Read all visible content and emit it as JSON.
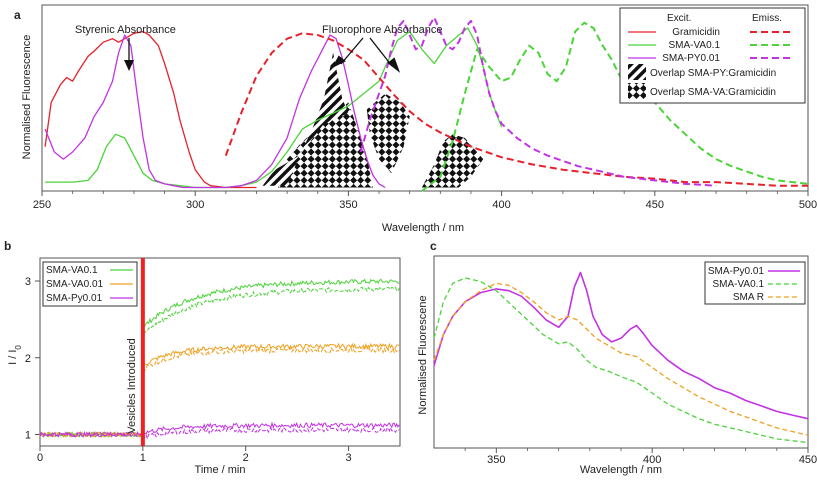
{
  "chart_data": [
    {
      "id": "a",
      "type": "line",
      "panel_label": "a",
      "xlabel": "Wavelength / nm",
      "ylabel": "Normalised Fluorescence",
      "xlim": [
        250,
        500
      ],
      "ylim": [
        0,
        1.05
      ],
      "xticks": [
        "250",
        "300",
        "350",
        "400",
        "450",
        "500"
      ],
      "xtick_values": [
        250,
        300,
        350,
        400,
        450,
        500
      ],
      "legend": {
        "excit_header": "Excit.",
        "emiss_header": "Emiss.",
        "entries": [
          "Gramicidin",
          "SMA-VA0.1",
          "SMA-PY0.01"
        ],
        "overlap_py_label": "Overlap SMA-PY:Gramicidin",
        "overlap_va_label": "Overlap SMA-VA:Gramicidin"
      },
      "annotations": {
        "styrenic": "Styrenic Absorbance",
        "fluorophore": "Fluorophore Absorbance"
      },
      "colors": {
        "gramicidin": "#e8202a",
        "va": "#4cd43a",
        "py": "#c233e3"
      },
      "series": [
        {
          "name": "Gramicidin",
          "kind": "excitation",
          "color": "#e8202a",
          "x": [
            251,
            253,
            256,
            258,
            260,
            262,
            265,
            267,
            270,
            273,
            275,
            278,
            280,
            283,
            285,
            288,
            290,
            293,
            295,
            298,
            300,
            303,
            305,
            310,
            315,
            320
          ],
          "y": [
            0.25,
            0.5,
            0.6,
            0.64,
            0.62,
            0.68,
            0.76,
            0.79,
            0.84,
            0.86,
            0.84,
            0.87,
            0.89,
            0.9,
            0.88,
            0.82,
            0.72,
            0.55,
            0.4,
            0.22,
            0.12,
            0.05,
            0.03,
            0.02,
            0.02,
            0.02
          ]
        },
        {
          "name": "SMA-VA0.1",
          "kind": "excitation",
          "color": "#4cd43a",
          "x": [
            251,
            255,
            260,
            265,
            268,
            271,
            274,
            277,
            280,
            283,
            286,
            290,
            295,
            300,
            305,
            310,
            315,
            320,
            325,
            330,
            335,
            340,
            345,
            350,
            355,
            360,
            362,
            366,
            370,
            374,
            378,
            382,
            386,
            389,
            392,
            394,
            396,
            398,
            400
          ],
          "y": [
            0.05,
            0.05,
            0.05,
            0.06,
            0.12,
            0.25,
            0.32,
            0.3,
            0.2,
            0.1,
            0.06,
            0.04,
            0.03,
            0.02,
            0.02,
            0.02,
            0.03,
            0.05,
            0.11,
            0.22,
            0.35,
            0.4,
            0.44,
            0.48,
            0.55,
            0.62,
            0.7,
            0.85,
            0.9,
            0.8,
            0.72,
            0.82,
            0.88,
            0.92,
            0.82,
            0.7,
            0.55,
            0.45,
            0.36
          ]
        },
        {
          "name": "SMA-PY0.01",
          "kind": "excitation",
          "color": "#c233e3",
          "x": [
            251,
            254,
            257,
            260,
            264,
            267,
            270,
            273,
            275,
            277,
            279,
            281,
            283,
            285,
            287,
            290,
            293,
            296,
            300,
            305,
            310,
            315,
            320,
            325,
            330,
            334,
            338,
            341,
            344,
            346,
            348,
            350,
            352,
            354,
            356,
            358,
            360,
            362
          ],
          "y": [
            0.35,
            0.22,
            0.18,
            0.22,
            0.3,
            0.42,
            0.5,
            0.62,
            0.78,
            0.88,
            0.82,
            0.55,
            0.3,
            0.12,
            0.06,
            0.04,
            0.03,
            0.02,
            0.02,
            0.02,
            0.02,
            0.03,
            0.06,
            0.15,
            0.3,
            0.52,
            0.68,
            0.78,
            0.88,
            0.86,
            0.75,
            0.6,
            0.44,
            0.3,
            0.18,
            0.09,
            0.04,
            0.02
          ]
        },
        {
          "name": "Gramicidin",
          "kind": "emission",
          "color": "#e8202a",
          "x": [
            310,
            315,
            320,
            325,
            330,
            335,
            340,
            345,
            350,
            355,
            360,
            365,
            370,
            375,
            380,
            385,
            390,
            395,
            400,
            410,
            420,
            430,
            440,
            450,
            460,
            470,
            480,
            490,
            500
          ],
          "y": [
            0.2,
            0.44,
            0.65,
            0.78,
            0.86,
            0.89,
            0.88,
            0.85,
            0.8,
            0.74,
            0.64,
            0.54,
            0.45,
            0.38,
            0.33,
            0.29,
            0.25,
            0.22,
            0.19,
            0.15,
            0.12,
            0.1,
            0.08,
            0.07,
            0.05,
            0.05,
            0.04,
            0.03,
            0.03
          ]
        },
        {
          "name": "SMA-VA0.1",
          "kind": "emission",
          "color": "#4cd43a",
          "x": [
            374,
            380,
            384,
            388,
            392,
            396,
            400,
            403,
            406,
            409,
            412,
            415,
            418,
            421,
            424,
            427,
            430,
            433,
            436,
            440,
            445,
            450,
            455,
            460,
            465,
            470,
            475,
            480,
            485,
            490,
            495,
            500
          ],
          "y": [
            0.0,
            0.08,
            0.28,
            0.55,
            0.8,
            0.7,
            0.62,
            0.64,
            0.74,
            0.82,
            0.78,
            0.66,
            0.62,
            0.7,
            0.9,
            0.95,
            0.92,
            0.82,
            0.74,
            0.6,
            0.55,
            0.5,
            0.4,
            0.32,
            0.24,
            0.18,
            0.14,
            0.11,
            0.08,
            0.06,
            0.05,
            0.04
          ]
        },
        {
          "name": "SMA-PY0.01",
          "kind": "emission",
          "color": "#c233e3",
          "x": [
            354,
            357,
            360,
            362,
            364,
            366,
            368,
            370,
            372,
            374,
            376,
            378,
            380,
            382,
            384,
            386,
            388,
            390,
            392,
            394,
            396,
            398,
            400,
            405,
            410,
            415,
            420,
            425,
            430,
            435,
            440,
            450,
            460,
            470
          ],
          "y": [
            0.22,
            0.4,
            0.55,
            0.65,
            0.8,
            0.92,
            0.96,
            0.88,
            0.8,
            0.82,
            0.92,
            0.98,
            0.9,
            0.82,
            0.8,
            0.84,
            0.92,
            0.96,
            0.88,
            0.7,
            0.55,
            0.45,
            0.38,
            0.3,
            0.24,
            0.2,
            0.17,
            0.14,
            0.12,
            0.1,
            0.08,
            0.06,
            0.04,
            0.03
          ]
        }
      ],
      "overlap_regions": {
        "py_gramicidin": [
          [
            330,
            0.03
          ],
          [
            334,
            0.2
          ],
          [
            338,
            0.34
          ],
          [
            342,
            0.52
          ],
          [
            345,
            0.78
          ],
          [
            348,
            0.52
          ],
          [
            350,
            0.44
          ],
          [
            342,
            0.38
          ],
          [
            334,
            0.2
          ],
          [
            326,
            0.12
          ],
          [
            322,
            0.03
          ]
        ],
        "va_gramicidin": [
          [
            [
              327,
              0.02
            ],
            [
              330,
              0.18
            ],
            [
              334,
              0.26
            ],
            [
              340,
              0.36
            ],
            [
              345,
              0.42
            ],
            [
              350,
              0.5
            ],
            [
              352,
              0.4
            ],
            [
              356,
              0.2
            ],
            [
              358,
              0.02
            ]
          ],
          [
            [
              356,
              0.46
            ],
            [
              362,
              0.55
            ],
            [
              367,
              0.5
            ],
            [
              370,
              0.42
            ],
            [
              368,
              0.25
            ],
            [
              364,
              0.1
            ],
            [
              360,
              0.18
            ],
            [
              357,
              0.32
            ]
          ],
          [
            [
              374,
              0.02
            ],
            [
              378,
              0.15
            ],
            [
              381,
              0.28
            ],
            [
              384,
              0.32
            ],
            [
              388,
              0.3
            ],
            [
              391,
              0.24
            ],
            [
              394,
              0.18
            ],
            [
              390,
              0.08
            ],
            [
              386,
              0.02
            ]
          ]
        ]
      }
    },
    {
      "id": "b",
      "type": "line",
      "panel_label": "b",
      "xlabel": "Time / min",
      "ylabel_main": "I / I",
      "ylabel_sub": "0",
      "xlim": [
        0,
        3.5
      ],
      "ylim": [
        0.85,
        3.3
      ],
      "xticks": [
        "0",
        "1",
        "2",
        "3"
      ],
      "xtick_values": [
        0,
        1,
        2,
        3
      ],
      "yticks": [
        "1",
        "2",
        "3"
      ],
      "ytick_values": [
        1,
        2,
        3
      ],
      "event_label": "Vesicles Introduced",
      "event_x": 1.0,
      "event_color": "#ee2222",
      "legend": [
        "SMA-VA0.1",
        "SMA-VA0.01",
        "SMA-Py0.01"
      ],
      "series": [
        {
          "name": "SMA-VA0.1",
          "color": "#4cd43a",
          "start": 2.4,
          "rise": 0.5,
          "plateau_solid": 3.0,
          "plateau_dashed": 2.9
        },
        {
          "name": "SMA-VA0.01",
          "color": "#f0a020",
          "start": 1.9,
          "rise": 0.3,
          "plateau_solid": 2.15,
          "plateau_dashed": 2.1
        },
        {
          "name": "SMA-Py0.01",
          "color": "#c233e3",
          "start": 1.02,
          "rise": 0.3,
          "plateau_solid": 1.12,
          "plateau_dashed": 1.06
        }
      ]
    },
    {
      "id": "c",
      "type": "line",
      "panel_label": "c",
      "xlabel": "Wavelength / nm",
      "ylabel": "Normalised Fluorescene",
      "xlim": [
        330,
        450
      ],
      "ylim": [
        0,
        1.05
      ],
      "xticks": [
        "350",
        "400",
        "450"
      ],
      "xtick_values": [
        350,
        400,
        450
      ],
      "legend": [
        "SMA-Py0.01",
        "SMA-VA0.1",
        "SMA R"
      ],
      "series": [
        {
          "name": "SMA-Py0.01",
          "dash": false,
          "color": "#c233e3",
          "x": [
            330,
            333,
            336,
            340,
            345,
            350,
            354,
            358,
            362,
            366,
            370,
            373,
            375,
            377,
            379,
            381,
            384,
            387,
            390,
            393,
            395,
            397,
            400,
            405,
            410,
            415,
            420,
            425,
            430,
            435,
            440,
            445,
            450
          ],
          "y": [
            0.45,
            0.62,
            0.72,
            0.8,
            0.85,
            0.87,
            0.86,
            0.83,
            0.77,
            0.7,
            0.66,
            0.72,
            0.88,
            0.96,
            0.86,
            0.72,
            0.62,
            0.58,
            0.6,
            0.65,
            0.67,
            0.63,
            0.56,
            0.48,
            0.42,
            0.38,
            0.33,
            0.3,
            0.26,
            0.23,
            0.2,
            0.18,
            0.16
          ]
        },
        {
          "name": "SMA-VA0.1",
          "dash": true,
          "color": "#4cd43a",
          "x": [
            330,
            333,
            336,
            340,
            345,
            350,
            355,
            360,
            365,
            370,
            373,
            376,
            379,
            382,
            386,
            390,
            395,
            400,
            405,
            410,
            415,
            420,
            425,
            430,
            435,
            440,
            445,
            450
          ],
          "y": [
            0.6,
            0.8,
            0.9,
            0.93,
            0.91,
            0.86,
            0.78,
            0.7,
            0.62,
            0.57,
            0.58,
            0.54,
            0.48,
            0.44,
            0.42,
            0.39,
            0.36,
            0.3,
            0.24,
            0.2,
            0.16,
            0.13,
            0.11,
            0.09,
            0.07,
            0.05,
            0.04,
            0.03
          ]
        },
        {
          "name": "SMA R",
          "dash": true,
          "color": "#f0a020",
          "x": [
            330,
            333,
            336,
            340,
            345,
            350,
            354,
            358,
            362,
            366,
            370,
            373,
            376,
            379,
            382,
            386,
            390,
            395,
            400,
            405,
            410,
            415,
            420,
            425,
            430,
            435,
            440,
            445,
            450
          ],
          "y": [
            0.48,
            0.62,
            0.72,
            0.8,
            0.86,
            0.9,
            0.89,
            0.85,
            0.8,
            0.74,
            0.7,
            0.72,
            0.7,
            0.65,
            0.6,
            0.56,
            0.52,
            0.5,
            0.44,
            0.38,
            0.33,
            0.28,
            0.24,
            0.2,
            0.17,
            0.14,
            0.11,
            0.09,
            0.07
          ]
        }
      ]
    }
  ]
}
